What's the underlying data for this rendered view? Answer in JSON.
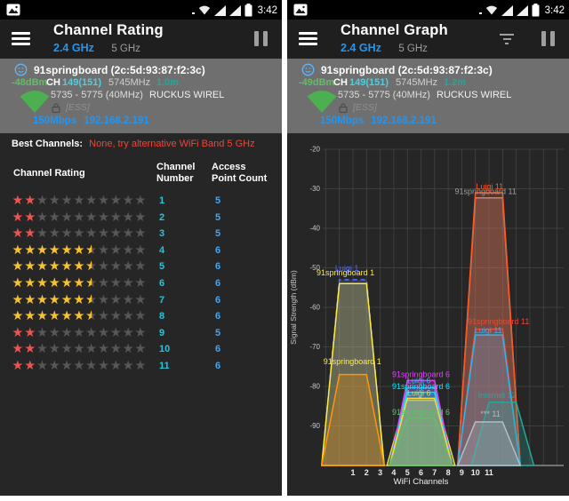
{
  "status": {
    "time": "3:42"
  },
  "icons": {
    "star": "★"
  },
  "left": {
    "toolbar": {
      "title": "Channel Rating",
      "band_primary": "2.4 GHz",
      "band_secondary": "5 GHz"
    },
    "ap": {
      "ssid": "91springboard (2c:5d:93:87:f2:3c)",
      "rssi": "-48dBm",
      "ch_label": "CH",
      "channel": "149(151)",
      "frequency": "5745MHz",
      "distance": "1.0m",
      "channel_range": "5735 - 5775 (40MHz)",
      "vendor": "RUCKUS WIREL",
      "capabilities": "[ESS]",
      "link_speed": "150Mbps",
      "ip": "192.168.2.191"
    },
    "best_channels": {
      "label": "Best Channels:",
      "value": "None, try alternative WiFi Band 5 GHz"
    },
    "table": {
      "headers": [
        "Channel Rating",
        "Channel Number",
        "Access Point Count"
      ],
      "max_stars": 11,
      "empty_star_color": "#575757",
      "channel_color": "#26c6da",
      "count_color": "#42a5f5",
      "rows": [
        {
          "channel": "1",
          "count": "5",
          "stars": 2,
          "half": false,
          "star_color": "#ef5350"
        },
        {
          "channel": "2",
          "count": "5",
          "stars": 2,
          "half": false,
          "star_color": "#ef5350"
        },
        {
          "channel": "3",
          "count": "5",
          "stars": 2,
          "half": false,
          "star_color": "#ef5350"
        },
        {
          "channel": "4",
          "count": "6",
          "stars": 6,
          "half": true,
          "star_color": "#fbc02d"
        },
        {
          "channel": "5",
          "count": "6",
          "stars": 6,
          "half": true,
          "star_color": "#fbc02d"
        },
        {
          "channel": "6",
          "count": "6",
          "stars": 6,
          "half": true,
          "star_color": "#fbc02d"
        },
        {
          "channel": "7",
          "count": "6",
          "stars": 6,
          "half": true,
          "star_color": "#fbc02d"
        },
        {
          "channel": "8",
          "count": "6",
          "stars": 6,
          "half": true,
          "star_color": "#fbc02d"
        },
        {
          "channel": "9",
          "count": "5",
          "stars": 2,
          "half": false,
          "star_color": "#ef5350"
        },
        {
          "channel": "10",
          "count": "6",
          "stars": 2,
          "half": false,
          "star_color": "#ef5350"
        },
        {
          "channel": "11",
          "count": "6",
          "stars": 2,
          "half": false,
          "star_color": "#ef5350"
        }
      ]
    }
  },
  "right": {
    "toolbar": {
      "title": "Channel Graph",
      "band_primary": "2.4 GHz",
      "band_secondary": "5 GHz"
    },
    "ap": {
      "ssid": "91springboard (2c:5d:93:87:f2:3c)",
      "rssi": "-49dBm",
      "ch_label": "CH",
      "channel": "149(151)",
      "frequency": "5745MHz",
      "distance": "1.2m",
      "channel_range": "5735 - 5775 (40MHz)",
      "vendor": "RUCKUS WIREL",
      "capabilities": "[ESS]",
      "link_speed": "150Mbps",
      "ip": "192.168.2.191"
    }
  },
  "chart_data": {
    "type": "area",
    "xlabel": "WiFi Channels",
    "ylabel": "Signal Strength (dBm)",
    "x_ticks": [
      1,
      2,
      3,
      4,
      5,
      6,
      7,
      8,
      9,
      10,
      11
    ],
    "y_ticks": [
      -20,
      -30,
      -40,
      -50,
      -60,
      -70,
      -80,
      -90
    ],
    "ylim": [
      -100,
      -20
    ],
    "xlim": [
      -1.2,
      16.5
    ],
    "grid": true,
    "series": [
      {
        "name": "91springboard 11",
        "channel": 11,
        "signal_dbm": -32.3,
        "color": "#9e9e9e",
        "label_ch": 10.75,
        "label_dbm": -31.4
      },
      {
        "name": "Luigi 11",
        "channel": 11,
        "signal_dbm": -31,
        "color": "#ff5722",
        "label_ch": 11.05,
        "label_dbm": -30.1
      },
      {
        "name": "Luigi 1",
        "channel": 1,
        "signal_dbm": -53,
        "color": "#536dfe",
        "dashed": true,
        "label_ch": 0.55,
        "label_dbm": -50.8
      },
      {
        "name": "91springboard 1",
        "channel": 1,
        "signal_dbm": -54,
        "color": "#ffeb3b",
        "label_ch": 0.45,
        "label_dbm": -51.9
      },
      {
        "name": "91springboard 1",
        "channel": 1,
        "signal_dbm": -77,
        "color": "#ff9800",
        "label_color": "#ffeb3b",
        "label_ch": 0.95,
        "label_dbm": -74.4
      },
      {
        "name": "Luigi 6",
        "channel": 6,
        "signal_dbm": -80.3,
        "color": "#26c6da",
        "label_ch": 5.85,
        "label_dbm": -79.2
      },
      {
        "name": "Luigi 6",
        "channel": 6,
        "signal_dbm": -83.5,
        "color": "#d4e157",
        "bottom_hw": 2.5,
        "top_hw": 1.15,
        "label_ch": 5.85,
        "label_dbm": -82.4
      },
      {
        "name": "91springboard 6",
        "channel": 6,
        "signal_dbm": -78.5,
        "color": "#e040fb",
        "label_ch": 6.0,
        "label_dbm": -77.6
      },
      {
        "name": "91springboard 6",
        "channel": 6,
        "signal_dbm": -81.5,
        "color": "#00e5ff",
        "label_ch": 6.0,
        "label_dbm": -80.7
      },
      {
        "name": "Luigi 6",
        "channel": 6,
        "signal_dbm": -83,
        "color": "#fdd835",
        "label": false
      },
      {
        "name": "91springboard 6",
        "channel": 6,
        "signal_dbm": -88,
        "color": "#66bb6a",
        "label_ch": 6.0,
        "label_dbm": -87.2
      },
      {
        "name": "91springboard 11",
        "channel": 11,
        "signal_dbm": -65.5,
        "color": "#f44336",
        "label_ch": 11.7,
        "label_dbm": -64.3
      },
      {
        "name": "Luigi 11",
        "channel": 11,
        "signal_dbm": -67,
        "color": "#29b6f6",
        "label_ch": 10.95,
        "label_dbm": -66.5
      },
      {
        "name": "Internet 12",
        "channel": 12,
        "signal_dbm": -84,
        "color": "#26a69a",
        "label_ch": 11.6,
        "label_dbm": -82.9
      },
      {
        "name": "*** 11",
        "channel": 11,
        "signal_dbm": -89,
        "color": "#b0bec5",
        "label_ch": 11.1,
        "label_dbm": -87.6
      }
    ]
  }
}
